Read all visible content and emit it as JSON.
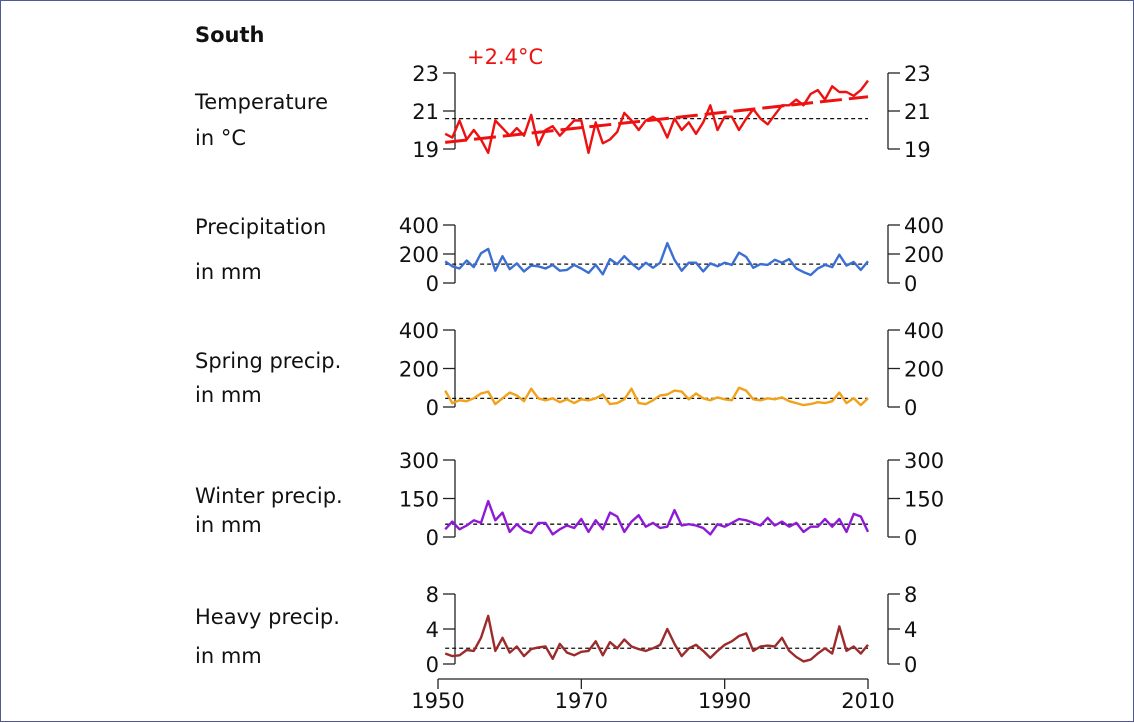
{
  "title": "South",
  "chart_data": [
    {
      "type": "line",
      "label_lines": [
        "Temperature",
        "in °C"
      ],
      "annotation": "+2.4°C",
      "color": "#ee1111",
      "yticks": [
        19,
        21,
        23
      ],
      "ylim": [
        19,
        23
      ],
      "x": [
        1951,
        1952,
        1953,
        1954,
        1955,
        1956,
        1957,
        1958,
        1959,
        1960,
        1961,
        1962,
        1963,
        1964,
        1965,
        1966,
        1967,
        1968,
        1969,
        1970,
        1971,
        1972,
        1973,
        1974,
        1975,
        1976,
        1977,
        1978,
        1979,
        1980,
        1981,
        1982,
        1983,
        1984,
        1985,
        1986,
        1987,
        1988,
        1989,
        1990,
        1991,
        1992,
        1993,
        1994,
        1995,
        1996,
        1997,
        1998,
        1999,
        2000,
        2001,
        2002,
        2003,
        2004,
        2005,
        2006,
        2007,
        2008,
        2009,
        2010
      ],
      "values": [
        19.8,
        19.6,
        20.5,
        19.5,
        20.0,
        19.5,
        18.8,
        20.5,
        20.1,
        19.7,
        20.1,
        19.7,
        20.8,
        19.2,
        20.0,
        20.2,
        19.7,
        20.1,
        20.5,
        20.5,
        18.8,
        20.4,
        19.3,
        19.5,
        19.9,
        20.9,
        20.5,
        20.0,
        20.5,
        20.7,
        20.4,
        19.6,
        20.6,
        20.0,
        20.4,
        19.8,
        20.4,
        21.3,
        20.0,
        20.7,
        20.7,
        20.0,
        20.6,
        21.1,
        20.6,
        20.3,
        20.8,
        21.3,
        21.3,
        21.6,
        21.3,
        21.9,
        22.1,
        21.6,
        22.3,
        22.0,
        22.0,
        21.8,
        22.1,
        22.6
      ],
      "mean": 20.6,
      "trend": [
        19.35,
        21.75
      ]
    },
    {
      "type": "line",
      "label_lines": [
        "Precipitation",
        "in mm"
      ],
      "color": "#3b6fd4",
      "yticks": [
        0,
        200,
        400
      ],
      "ylim": [
        0,
        400
      ],
      "x": [
        1951,
        1952,
        1953,
        1954,
        1955,
        1956,
        1957,
        1958,
        1959,
        1960,
        1961,
        1962,
        1963,
        1964,
        1965,
        1966,
        1967,
        1968,
        1969,
        1970,
        1971,
        1972,
        1973,
        1974,
        1975,
        1976,
        1977,
        1978,
        1979,
        1980,
        1981,
        1982,
        1983,
        1984,
        1985,
        1986,
        1987,
        1988,
        1989,
        1990,
        1991,
        1992,
        1993,
        1994,
        1995,
        1996,
        1997,
        1998,
        1999,
        2000,
        2001,
        2002,
        2003,
        2004,
        2005,
        2006,
        2007,
        2008,
        2009,
        2010
      ],
      "values": [
        150,
        115,
        100,
        155,
        110,
        205,
        235,
        85,
        185,
        95,
        135,
        80,
        120,
        115,
        100,
        125,
        85,
        90,
        125,
        100,
        70,
        125,
        60,
        165,
        130,
        185,
        135,
        95,
        140,
        105,
        140,
        275,
        160,
        85,
        140,
        140,
        80,
        135,
        115,
        140,
        125,
        210,
        180,
        105,
        130,
        125,
        160,
        140,
        165,
        100,
        75,
        55,
        100,
        125,
        110,
        195,
        120,
        145,
        90,
        150
      ],
      "mean": 130
    },
    {
      "type": "line",
      "label_lines": [
        "Spring precip.",
        "in mm"
      ],
      "color": "#f2a11b",
      "yticks": [
        0,
        200,
        400
      ],
      "ylim": [
        0,
        400
      ],
      "x": [
        1951,
        1952,
        1953,
        1954,
        1955,
        1956,
        1957,
        1958,
        1959,
        1960,
        1961,
        1962,
        1963,
        1964,
        1965,
        1966,
        1967,
        1968,
        1969,
        1970,
        1971,
        1972,
        1973,
        1974,
        1975,
        1976,
        1977,
        1978,
        1979,
        1980,
        1981,
        1982,
        1983,
        1984,
        1985,
        1986,
        1987,
        1988,
        1989,
        1990,
        1991,
        1992,
        1993,
        1994,
        1995,
        1996,
        1997,
        1998,
        1999,
        2000,
        2001,
        2002,
        2003,
        2004,
        2005,
        2006,
        2007,
        2008,
        2009,
        2010
      ],
      "values": [
        85,
        20,
        35,
        30,
        45,
        70,
        80,
        15,
        45,
        75,
        60,
        30,
        95,
        45,
        35,
        45,
        25,
        40,
        20,
        40,
        35,
        45,
        65,
        15,
        20,
        40,
        95,
        20,
        15,
        35,
        60,
        65,
        85,
        80,
        40,
        70,
        45,
        35,
        50,
        40,
        35,
        100,
        85,
        40,
        35,
        45,
        40,
        50,
        30,
        20,
        10,
        15,
        25,
        20,
        30,
        75,
        20,
        45,
        10,
        45
      ],
      "mean": 45
    },
    {
      "type": "line",
      "label_lines": [
        "Winter precip.",
        "in mm"
      ],
      "color": "#8e1ad6",
      "yticks": [
        0,
        150,
        300
      ],
      "ylim": [
        0,
        300
      ],
      "x": [
        1951,
        1952,
        1953,
        1954,
        1955,
        1956,
        1957,
        1958,
        1959,
        1960,
        1961,
        1962,
        1963,
        1964,
        1965,
        1966,
        1967,
        1968,
        1969,
        1970,
        1971,
        1972,
        1973,
        1974,
        1975,
        1976,
        1977,
        1978,
        1979,
        1980,
        1981,
        1982,
        1983,
        1984,
        1985,
        1986,
        1987,
        1988,
        1989,
        1990,
        1991,
        1992,
        1993,
        1994,
        1995,
        1996,
        1997,
        1998,
        1999,
        2000,
        2001,
        2002,
        2003,
        2004,
        2005,
        2006,
        2007,
        2008,
        2009,
        2010
      ],
      "values": [
        30,
        60,
        30,
        45,
        65,
        55,
        140,
        65,
        95,
        20,
        50,
        25,
        15,
        55,
        55,
        10,
        30,
        45,
        35,
        70,
        20,
        65,
        30,
        95,
        80,
        20,
        60,
        85,
        40,
        55,
        35,
        40,
        105,
        45,
        50,
        45,
        35,
        10,
        50,
        40,
        55,
        70,
        65,
        55,
        45,
        75,
        45,
        60,
        40,
        55,
        20,
        40,
        40,
        70,
        40,
        70,
        20,
        90,
        80,
        20
      ],
      "mean": 50
    },
    {
      "type": "line",
      "label_lines": [
        "Heavy precip.",
        "in mm"
      ],
      "color": "#9c2b2b",
      "yticks": [
        0,
        4,
        8
      ],
      "ylim": [
        0,
        8
      ],
      "x": [
        1951,
        1952,
        1953,
        1954,
        1955,
        1956,
        1957,
        1958,
        1959,
        1960,
        1961,
        1962,
        1963,
        1964,
        1965,
        1966,
        1967,
        1968,
        1969,
        1970,
        1971,
        1972,
        1973,
        1974,
        1975,
        1976,
        1977,
        1978,
        1979,
        1980,
        1981,
        1982,
        1983,
        1984,
        1985,
        1986,
        1987,
        1988,
        1989,
        1990,
        1991,
        1992,
        1993,
        1994,
        1995,
        1996,
        1997,
        1998,
        1999,
        2000,
        2001,
        2002,
        2003,
        2004,
        2005,
        2006,
        2007,
        2008,
        2009,
        2010
      ],
      "values": [
        1.2,
        0.9,
        1.0,
        1.6,
        1.5,
        3.0,
        5.5,
        1.5,
        3.0,
        1.3,
        2.0,
        0.9,
        1.7,
        1.9,
        2.0,
        0.6,
        2.3,
        1.3,
        1.0,
        1.4,
        1.5,
        2.6,
        1.0,
        2.5,
        1.8,
        2.8,
        2.0,
        1.7,
        1.5,
        1.8,
        2.2,
        4.0,
        2.3,
        0.9,
        1.8,
        2.2,
        1.5,
        0.7,
        1.5,
        2.2,
        2.6,
        3.2,
        3.5,
        1.5,
        2.0,
        2.1,
        2.0,
        3.0,
        1.5,
        0.8,
        0.3,
        0.5,
        1.2,
        1.8,
        1.2,
        4.3,
        1.5,
        2.0,
        1.2,
        2.2
      ],
      "mean": 1.8
    }
  ],
  "x_axis": {
    "ticks": [
      1950,
      1970,
      1990,
      2010
    ],
    "xlim": [
      1950,
      2010
    ]
  }
}
